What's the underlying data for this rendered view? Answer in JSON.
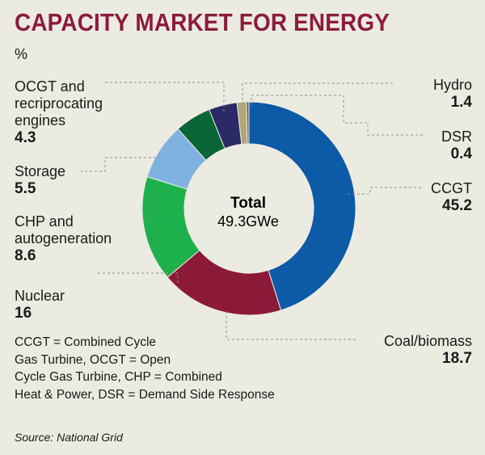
{
  "header": {
    "title": "CAPACITY MARKET FOR ENERGY",
    "unit": "%"
  },
  "chart_data": {
    "type": "pie",
    "title": "CAPACITY MARKET FOR ENERGY",
    "unit": "%",
    "center_label": "Total",
    "center_value": "49.3GWe",
    "slices": [
      {
        "name": "CCGT",
        "value": 45.2,
        "color": "#0d5aa6"
      },
      {
        "name": "Coal/biomass",
        "value": 18.7,
        "color": "#8b1a38"
      },
      {
        "name": "Nuclear",
        "value": 16,
        "color": "#1db04c"
      },
      {
        "name": "CHP and autogeneration",
        "value": 8.6,
        "color": "#7fb2e0"
      },
      {
        "name": "Storage",
        "value": 5.5,
        "color": "#0a6636"
      },
      {
        "name": "OCGT and reciprocating engines",
        "value": 4.3,
        "color": "#2b2a66"
      },
      {
        "name": "Hydro",
        "value": 1.4,
        "color": "#b0a878"
      },
      {
        "name": "DSR",
        "value": 0.4,
        "color": "#6a6a6a"
      }
    ],
    "label_lines": {
      "ocgt": [
        "OCGT and",
        "recriprocating",
        "engines"
      ],
      "chp": [
        "CHP and",
        "autogeneration"
      ]
    },
    "value_labels": {
      "ccgt": "45.2",
      "coal": "18.7",
      "nuclear": "16",
      "chp": "8.6",
      "storage": "5.5",
      "ocgt": "4.3",
      "hydro": "1.4",
      "dsr": "0.4"
    }
  },
  "notes": {
    "lines": [
      "CCGT = Combined Cycle",
      "Gas Turbine, OCGT = Open",
      "Cycle Gas Turbine, CHP = Combined",
      "Heat & Power, DSR = Demand Side Response"
    ]
  },
  "source": "Source: National Grid"
}
